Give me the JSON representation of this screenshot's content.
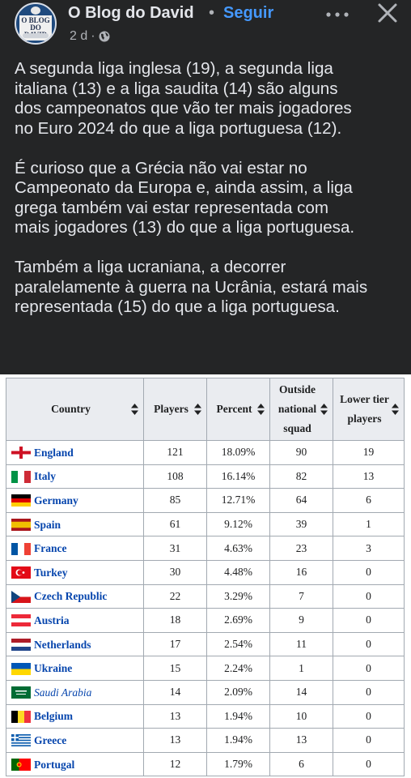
{
  "header": {
    "author": "O Blog do David",
    "separator": "•",
    "follow_label": "Seguir",
    "time": "2 d",
    "meta_dot": "·",
    "avatar_text": "O BLOG DO DAVID",
    "icons": [
      "globe-icon",
      "more-options-icon",
      "close-icon"
    ]
  },
  "post": {
    "paragraphs": [
      [
        "A segunda liga inglesa (19), a segunda liga",
        "italiana (13) e a liga saudita (14) são alguns",
        "dos campeonatos que vão ter mais jogadores",
        "no Euro 2024 do que a liga portuguesa (12)."
      ],
      [
        "É curioso que a Grécia não vai estar no",
        "Campeonato da Europa e, ainda assim, a liga",
        "grega também vai estar representada com",
        "mais jogadores (13) do que a liga portuguesa."
      ],
      [
        "Também a liga ucraniana, a decorrer",
        "paralelamente à guerra na Ucrânia, estará mais",
        "representada (15) do que a liga portuguesa."
      ]
    ]
  },
  "table": {
    "headers": {
      "country": "Country",
      "players": "Players",
      "percent": "Percent",
      "outside_line1": "Outside",
      "outside_line2": "national",
      "outside_line3": "squad",
      "lower_line1": "Lower tier",
      "lower_line2": "players"
    },
    "rows": [
      {
        "flag": "england",
        "country": "England",
        "players": "121",
        "percent": "18.09%",
        "outside": "90",
        "lower": "19"
      },
      {
        "flag": "italy",
        "country": "Italy",
        "players": "108",
        "percent": "16.14%",
        "outside": "82",
        "lower": "13"
      },
      {
        "flag": "germany",
        "country": "Germany",
        "players": "85",
        "percent": "12.71%",
        "outside": "64",
        "lower": "6"
      },
      {
        "flag": "spain",
        "country": "Spain",
        "players": "61",
        "percent": "9.12%",
        "outside": "39",
        "lower": "1"
      },
      {
        "flag": "france",
        "country": "France",
        "players": "31",
        "percent": "4.63%",
        "outside": "23",
        "lower": "3"
      },
      {
        "flag": "turkey",
        "country": "Turkey",
        "players": "30",
        "percent": "4.48%",
        "outside": "16",
        "lower": "0"
      },
      {
        "flag": "czech",
        "country": "Czech Republic",
        "players": "22",
        "percent": "3.29%",
        "outside": "7",
        "lower": "0"
      },
      {
        "flag": "austria",
        "country": "Austria",
        "players": "18",
        "percent": "2.69%",
        "outside": "9",
        "lower": "0"
      },
      {
        "flag": "netherlands",
        "country": "Netherlands",
        "players": "17",
        "percent": "2.54%",
        "outside": "11",
        "lower": "0"
      },
      {
        "flag": "ukraine",
        "country": "Ukraine",
        "players": "15",
        "percent": "2.24%",
        "outside": "1",
        "lower": "0"
      },
      {
        "flag": "saudi",
        "country": "Saudi Arabia",
        "players": "14",
        "percent": "2.09%",
        "outside": "14",
        "lower": "0",
        "italic": true
      },
      {
        "flag": "belgium",
        "country": "Belgium",
        "players": "13",
        "percent": "1.94%",
        "outside": "10",
        "lower": "0"
      },
      {
        "flag": "greece",
        "country": "Greece",
        "players": "13",
        "percent": "1.94%",
        "outside": "13",
        "lower": "0"
      },
      {
        "flag": "portugal",
        "country": "Portugal",
        "players": "12",
        "percent": "1.79%",
        "outside": "6",
        "lower": "0"
      }
    ]
  },
  "colors": {
    "background": "#242526",
    "text": "#e4e6eb",
    "secondary_text": "#b0b3b8",
    "link_blue": "#4599ff",
    "table_header_bg": "#eaecf0",
    "table_border": "#a2a9b1",
    "country_link": "#0645ad"
  }
}
